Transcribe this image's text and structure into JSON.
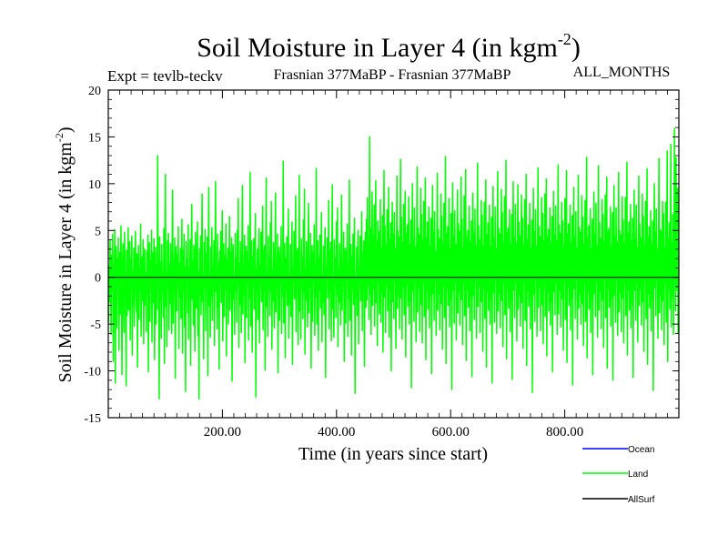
{
  "chart_data": {
    "type": "line",
    "title": "Soil Moisture in Layer 4 (in kgm",
    "title_superscript": "-2",
    "title_close": ")",
    "subtitle_left": "Expt = tevlb-teckv",
    "subtitle_center": "Frasnian 377MaBP - Frasnian 377MaBP",
    "subtitle_right": "ALL_MONTHS",
    "xlabel": "Time (in years since start)",
    "ylabel": "Soil Moisture in Layer 4 (in kgm",
    "ylabel_superscript": "-2",
    "ylabel_close": ")",
    "xlim": [
      0,
      1000
    ],
    "ylim": [
      -15,
      20
    ],
    "x_ticks": [
      200,
      400,
      600,
      800
    ],
    "x_tick_labels": [
      "200.00",
      "400.00",
      "600.00",
      "800.00"
    ],
    "y_ticks": [
      -15,
      -10,
      -5,
      0,
      5,
      10,
      15,
      20
    ],
    "y_tick_labels": [
      "-15",
      "-10",
      "-5",
      "0",
      "5",
      "10",
      "15",
      "20"
    ],
    "zero_line": 0,
    "series": [
      {
        "name": "Land",
        "color": "#00ff00",
        "summary": {
          "n_points": 1000,
          "min": -13.0,
          "max": 16.0,
          "mean": 0.0
        },
        "values": [
          -4.8,
          1.2,
          -2.6,
          3.9,
          -0.7,
          -6.1,
          2.4,
          -1.3,
          4.6,
          -9.0,
          -3.2,
          0.8,
          5.1,
          -11.3,
          -2.0,
          3.3,
          -5.4,
          1.9,
          -0.5,
          4.2,
          -7.8,
          -1.6,
          2.7,
          -3.9,
          5.5,
          -0.9,
          -10.4,
          1.1,
          3.6,
          -2.2,
          -5.9,
          4.8,
          0.3,
          -1.8,
          -11.6,
          2.9,
          -4.1,
          1.5,
          5.3,
          -3.5,
          -0.2,
          3.8,
          -6.7,
          2.0,
          -1.1,
          4.4,
          -8.3,
          0.6,
          -2.9,
          3.1,
          -5.2,
          1.7,
          4.9,
          -0.4,
          -3.7,
          2.5,
          -9.6,
          1.0,
          3.4,
          -4.5,
          0.9,
          -1.4,
          5.7,
          -6.3,
          2.2,
          -0.8,
          -2.5,
          4.0,
          -7.1,
          1.3,
          3.0,
          -3.0,
          0.4,
          -5.8,
          2.8,
          -1.9,
          4.5,
          -10.1,
          0.1,
          3.7,
          -4.7,
          1.8,
          -0.6,
          5.0,
          -6.9,
          2.6,
          -2.7,
          0.7,
          4.1,
          -8.8,
          -1.2,
          3.2,
          -5.0,
          1.4,
          -3.4,
          13.0,
          2.1,
          -0.3,
          -13.0,
          4.3,
          -2.4,
          1.6,
          -6.5,
          3.5,
          -1.5,
          0.5,
          -4.3,
          5.2,
          -9.2,
          2.3,
          11.0,
          -3.1,
          0.2,
          -7.4,
          3.9,
          -1.0,
          4.7,
          -5.6,
          1.2,
          -2.8,
          3.6,
          -0.1,
          -6.0,
          2.7,
          9.3,
          -4.9,
          1.9,
          -1.7,
          4.2,
          -10.8,
          0.8,
          3.3,
          -3.6,
          2.4,
          -0.7,
          5.4,
          -7.6,
          1.5,
          -2.1,
          3.1,
          -4.4,
          0.3,
          6.2,
          -8.1,
          2.9,
          -1.3,
          4.6,
          -5.3,
          1.1,
          -12.2,
          3.8,
          -0.5,
          2.0,
          -3.8,
          5.6,
          -6.6,
          0.9,
          -1.6,
          4.0,
          -9.4,
          2.6,
          7.8,
          -2.3,
          1.7,
          -5.1,
          3.4,
          -0.2,
          -7.9,
          4.8,
          1.0,
          -3.3,
          2.2,
          5.9,
          -6.2,
          0.6,
          -13.0,
          3.0,
          -1.8,
          4.4,
          -4.0,
          1.4,
          8.9,
          -2.6,
          0.2,
          -8.7,
          3.7,
          -1.1,
          5.1,
          -5.7,
          2.5,
          -0.9,
          4.3,
          -10.5,
          1.8,
          9.6,
          -3.0,
          0.4,
          -6.4,
          3.2,
          -2.0,
          5.3,
          -4.6,
          1.2,
          -0.4,
          3.9,
          -7.3,
          2.1,
          10.2,
          -1.5,
          0.7,
          -5.5,
          4.6,
          -3.2,
          1.6,
          -9.8,
          2.8,
          -0.6,
          4.9,
          -2.7,
          1.3,
          7.1,
          -6.8,
          0.5,
          3.6,
          -4.2,
          2.3,
          -1.2,
          5.7,
          -8.4,
          1.9,
          -0.3,
          3.1,
          -5.0,
          0.8,
          6.5,
          -3.5,
          2.6,
          -1.7,
          4.2,
          -11.1,
          1.0,
          3.5,
          -2.4,
          0.1,
          -6.1,
          4.7,
          -1.4,
          2.0,
          -4.8,
          5.0,
          -0.8,
          8.4,
          -7.5,
          1.5,
          -2.9,
          3.8,
          -0.1,
          -5.9,
          2.4,
          9.8,
          -3.9,
          1.1,
          -1.9,
          4.5,
          -9.1,
          0.6,
          3.3,
          -4.3,
          2.7,
          -0.5,
          5.5,
          -6.7,
          1.7,
          -2.2,
          11.2,
          -5.2,
          0.3,
          3.9,
          -8.0,
          2.2,
          -1.0,
          4.1,
          -3.4,
          1.4,
          6.8,
          -12.8,
          0.9,
          -1.6,
          3.0,
          -4.5,
          2.5,
          5.2,
          -7.0,
          1.2,
          -0.7,
          4.8,
          -2.6,
          0.4,
          7.6,
          -5.6,
          2.9,
          -1.3,
          3.4,
          -9.9,
          1.6,
          10.6,
          -3.1,
          0.2,
          -6.3,
          4.4,
          -0.9,
          2.1,
          -4.1,
          5.8,
          -1.5,
          8.1,
          -7.7,
          0.7,
          -2.5,
          3.7,
          -0.2,
          -5.4,
          2.3,
          9.0,
          -3.7,
          1.8,
          -1.1,
          4.6,
          -10.2,
          0.5,
          3.2,
          -4.6,
          2.6,
          -0.6,
          5.4,
          -6.0,
          1.3,
          -2.0,
          12.4,
          -4.9,
          0.8,
          3.6,
          -8.6,
          2.0,
          -1.4,
          4.3,
          -3.0,
          1.5,
          7.3,
          -6.5,
          0.1,
          -2.8,
          3.5,
          -4.2,
          2.4,
          5.9,
          -9.3,
          1.1,
          -0.4,
          4.9,
          -2.3,
          0.6,
          8.7,
          -5.8,
          2.8,
          -1.2,
          3.1,
          -7.2,
          1.7,
          10.9,
          -3.6,
          0.3,
          -6.6,
          4.1,
          -0.8,
          2.2,
          -4.4,
          6.1,
          -1.6,
          9.4,
          -8.2,
          0.9,
          -2.4,
          3.8,
          -0.3,
          -5.3,
          2.5,
          7.9,
          -3.8,
          1.4,
          -1.0,
          4.7,
          -9.7,
          0.4,
          3.4,
          -4.7,
          2.7,
          -0.5,
          5.6,
          -6.2,
          1.0,
          -2.1,
          11.6,
          -5.0,
          0.7,
          3.9,
          -7.8,
          2.1,
          -1.3,
          4.5,
          -3.3,
          1.6,
          6.9,
          -6.9,
          0.2,
          -2.6,
          3.3,
          -4.0,
          2.3,
          5.3,
          -10.7,
          1.2,
          -0.1,
          4.2,
          -2.2,
          0.5,
          8.2,
          -5.5,
          2.9,
          -1.5,
          3.7,
          -6.8,
          1.8,
          9.9,
          -3.4,
          0.0,
          -6.4,
          4.0,
          -0.7,
          2.0,
          -4.3,
          5.9,
          -1.8,
          7.4,
          -7.4,
          0.8,
          -2.7,
          3.6,
          -0.4,
          -5.1,
          2.6,
          8.8,
          -3.5,
          1.3,
          -0.9,
          4.8,
          -9.0,
          0.3,
          3.1,
          -4.9,
          2.8,
          -0.2,
          5.7,
          -6.3,
          1.5,
          -2.3,
          10.4,
          -4.6,
          0.6,
          3.5,
          -8.3,
          2.2,
          -1.2,
          4.6,
          -2.9,
          1.9,
          6.3,
          -12.4,
          0.1,
          -2.0,
          3.2,
          -4.1,
          2.5,
          5.0,
          -7.1,
          1.0,
          -0.6,
          4.4,
          -2.5,
          0.7,
          7.0,
          -5.7,
          2.7,
          -1.4,
          3.9,
          -9.5,
          1.6,
          4.8,
          -3.2,
          6.2,
          -2.4,
          8.5,
          -0.9,
          3.6,
          -4.5,
          15.0,
          -1.8,
          5.2,
          -6.1,
          2.3,
          9.1,
          -3.0,
          4.4,
          -1.2,
          7.7,
          -5.2,
          2.0,
          10.3,
          -2.7,
          3.8,
          -7.3,
          6.0,
          -0.5,
          4.9,
          -3.9,
          1.8,
          8.3,
          -4.8,
          3.1,
          -1.6,
          6.6,
          -8.0,
          2.6,
          11.4,
          -2.1,
          5.5,
          -5.9,
          3.4,
          -0.8,
          7.2,
          -3.6,
          1.4,
          9.6,
          -6.4,
          4.1,
          -1.3,
          5.8,
          -10.0,
          2.9,
          8.0,
          -2.6,
          4.6,
          -4.4,
          6.9,
          -0.3,
          3.0,
          -7.6,
          1.9,
          10.8,
          -3.3,
          5.0,
          -1.9,
          4.3,
          -5.5,
          2.4,
          12.6,
          -2.2,
          6.4,
          -6.6,
          3.7,
          -1.0,
          7.8,
          -4.0,
          1.3,
          9.2,
          -8.5,
          4.7,
          -0.7,
          5.6,
          -3.1,
          2.8,
          8.6,
          -5.0,
          3.5,
          -2.5,
          6.1,
          -11.8,
          1.7,
          10.0,
          -1.5,
          4.0,
          -4.7,
          7.4,
          -0.4,
          3.2,
          -6.9,
          2.1,
          11.8,
          -3.7,
          5.3,
          -1.1,
          4.5,
          -5.8,
          2.5,
          9.5,
          -2.9,
          6.7,
          -7.0,
          3.9,
          -0.6,
          8.1,
          -4.2,
          1.5,
          10.6,
          -8.8,
          4.2,
          -1.4,
          5.9,
          -3.4,
          2.2,
          7.5,
          -5.4,
          3.3,
          -2.0,
          6.3,
          -10.3,
          1.1,
          9.8,
          -1.7,
          4.8,
          -4.6,
          7.0,
          -0.2,
          2.7,
          -6.2,
          2.0,
          11.1,
          -3.5,
          5.1,
          -1.8,
          4.1,
          -5.6,
          2.3,
          8.9,
          -2.8,
          6.5,
          -7.7,
          3.6,
          -0.9,
          7.9,
          -4.3,
          1.6,
          12.9,
          -9.2,
          4.6,
          -1.1,
          5.4,
          -3.0,
          2.6,
          8.4,
          -5.3,
          3.0,
          -2.3,
          6.8,
          -12.0,
          1.2,
          10.1,
          -1.4,
          4.4,
          -4.9,
          7.1,
          -0.5,
          3.5,
          -6.7,
          1.8,
          9.3,
          -3.8,
          5.7,
          -1.6,
          4.9,
          -5.1,
          2.9,
          10.7,
          -2.4,
          6.2,
          -7.2,
          3.1,
          -0.7,
          8.7,
          -4.1,
          1.0,
          11.5,
          -8.9,
          4.3,
          -1.3,
          5.0,
          -3.2,
          2.1,
          7.6,
          -5.7,
          3.8,
          -2.1,
          6.0,
          -10.6,
          1.4,
          9.0,
          -1.9,
          4.7,
          -4.5,
          7.3,
          -0.1,
          3.4,
          -6.5,
          2.5,
          12.2,
          -3.1,
          5.5,
          -1.0,
          4.0,
          -5.9,
          2.7,
          8.2,
          -2.6,
          6.6,
          -7.9,
          3.3,
          -0.8,
          8.0,
          -4.4,
          1.7,
          10.4,
          -9.6,
          4.5,
          -1.5,
          5.8,
          -3.5,
          2.4,
          7.7,
          -5.0,
          3.2,
          -2.2,
          6.4,
          -11.3,
          1.3,
          9.7,
          -1.6,
          4.1,
          -4.8,
          7.5,
          -0.3,
          3.0,
          -6.0,
          2.2,
          11.3,
          -3.6,
          5.2,
          -1.7,
          4.6,
          -5.4,
          2.8,
          9.4,
          -2.5,
          6.9,
          -7.4,
          3.7,
          -0.6,
          8.6,
          -4.0,
          1.4,
          12.5,
          -8.7,
          4.8,
          -1.2,
          5.3,
          -3.3,
          2.0,
          7.2,
          -5.8,
          3.5,
          -2.4,
          6.7,
          -10.9,
          1.6,
          10.2,
          -1.3,
          4.2,
          -4.3,
          7.8,
          -0.4,
          3.6,
          -6.8,
          2.3,
          9.9,
          -3.4,
          5.9,
          -1.9,
          4.4,
          -5.2,
          2.6,
          8.8,
          -2.7,
          6.3,
          -7.6,
          3.4,
          -0.5,
          8.3,
          -4.6,
          1.1,
          11.0,
          -9.4,
          4.0,
          -1.4,
          5.6,
          -3.1,
          2.9,
          7.9,
          -5.5,
          3.1,
          -2.0,
          6.1,
          -12.3,
          1.5,
          9.5,
          -1.8,
          4.9,
          -4.7,
          7.2,
          -0.2,
          3.3,
          -6.3,
          2.4,
          11.7,
          -3.2,
          5.4,
          -1.1,
          4.3,
          -5.7,
          2.5,
          8.5,
          -2.9,
          6.8,
          -7.1,
          3.9,
          -0.9,
          8.9,
          -4.2,
          1.9,
          10.5,
          -8.4,
          4.4,
          -1.6,
          5.1,
          -3.6,
          2.2,
          7.4,
          -5.1,
          3.6,
          -2.6,
          6.5,
          -10.1,
          1.0,
          9.2,
          -1.5,
          4.5,
          -4.0,
          7.6,
          -0.6,
          3.9,
          -6.1,
          2.0,
          12.0,
          -3.9,
          5.6,
          -1.3,
          4.7,
          -5.3,
          2.8,
          8.0,
          -2.3,
          6.0,
          -7.8,
          3.2,
          -0.4,
          8.4,
          -4.5,
          1.3,
          11.4,
          -9.1,
          4.6,
          -1.0,
          5.7,
          -3.0,
          2.1,
          7.7,
          -5.6,
          3.7,
          -2.2,
          6.6,
          -11.5,
          1.7,
          9.6,
          -1.2,
          4.3,
          -4.4,
          7.0,
          -0.1,
          3.1,
          -6.6,
          2.7,
          10.9,
          -3.3,
          5.3,
          -1.8,
          4.8,
          -5.0,
          2.4,
          8.7,
          -2.8,
          6.4,
          -7.3,
          3.5,
          -0.7,
          8.2,
          -4.7,
          1.6,
          12.8,
          -8.6,
          4.2,
          -1.4,
          5.5,
          -3.4,
          2.6,
          7.3,
          -5.9,
          3.0,
          -2.5,
          6.2,
          -10.4,
          1.2,
          9.1,
          -1.7,
          4.6,
          -4.2,
          7.9,
          -0.5,
          3.4,
          -6.4,
          2.5,
          11.9,
          -3.5,
          5.8,
          -1.5,
          4.1,
          -5.5,
          2.3,
          8.3,
          -2.4,
          6.7,
          -7.5,
          3.8,
          -0.3,
          8.8,
          -4.3,
          1.8,
          10.7,
          -9.7,
          4.9,
          -1.1,
          5.2,
          -3.2,
          2.0,
          7.5,
          -5.2,
          3.3,
          -2.1,
          6.9,
          -11.0,
          1.4,
          9.8,
          -1.9,
          4.4,
          -4.8,
          7.4,
          -0.2,
          3.7,
          -6.2,
          2.2,
          11.2,
          -3.7,
          5.0,
          -1.6,
          4.5,
          -5.8,
          2.9,
          8.6,
          -2.2,
          6.1,
          -7.0,
          3.6,
          -0.8,
          8.5,
          -4.1,
          1.5,
          12.3,
          -8.3,
          4.7,
          -1.3,
          5.9,
          -3.5,
          2.4,
          7.8,
          -5.4,
          3.9,
          -2.7,
          6.3,
          -10.7,
          1.1,
          9.3,
          -1.4,
          4.0,
          -4.6,
          7.7,
          -0.6,
          3.2,
          -6.9,
          2.6,
          10.8,
          -3.0,
          5.7,
          -1.2,
          4.2,
          -5.1,
          2.7,
          8.9,
          -2.6,
          6.5,
          -7.9,
          3.4,
          -0.4,
          8.1,
          -4.4,
          1.3,
          11.6,
          -9.3,
          4.3,
          -1.7,
          5.4,
          -3.3,
          2.1,
          7.1,
          -5.7,
          3.5,
          -2.3,
          6.0,
          -12.1,
          1.6,
          10.0,
          -1.1,
          4.8,
          -4.1,
          7.3,
          -0.3,
          3.0,
          -6.5,
          2.3,
          12.7,
          -3.8,
          5.1,
          -1.9,
          4.9,
          -5.6,
          2.5,
          8.1,
          -2.5,
          6.8,
          -7.2,
          3.1,
          -0.6,
          8.0,
          -4.8,
          1.7,
          13.5,
          -9.0,
          4.1,
          -1.2,
          5.8,
          -3.4,
          2.8,
          14.2,
          -5.3,
          3.7,
          -2.0,
          6.7,
          -6.1,
          1.8,
          15.9,
          4.2,
          -3.6,
          12.8,
          5.0,
          -1.4,
          9.5,
          -6.0,
          2.9
        ]
      },
      {
        "name": "Ocean",
        "color": "#0000ff",
        "values": []
      },
      {
        "name": "AllSurf",
        "color": "#000000",
        "values": []
      }
    ],
    "legend_position": "bottom-right",
    "legend": [
      {
        "label": "Ocean",
        "color": "#0000ff"
      },
      {
        "label": "Land",
        "color": "#00ff00"
      },
      {
        "label": "AllSurf",
        "color": "#000000"
      }
    ]
  }
}
